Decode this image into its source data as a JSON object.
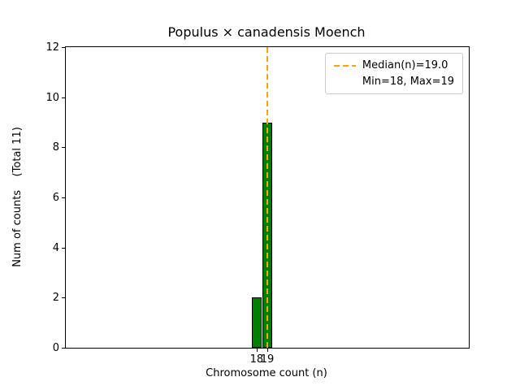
{
  "chart_data": {
    "type": "bar",
    "title": "Populus × canadensis Moench",
    "xlabel": "Chromosome count (n)",
    "ylabel": "Num of counts    (Total 11)",
    "categories": [
      18,
      19
    ],
    "values": [
      2,
      9
    ],
    "total_counts": 11,
    "xlim": [
      0,
      38
    ],
    "ylim": [
      0,
      12
    ],
    "xticks": [
      18,
      19
    ],
    "yticks": [
      0,
      2,
      4,
      6,
      8,
      10,
      12
    ],
    "bar_width": 0.9,
    "bar_color": "#008000",
    "bar_edge_color": "#000000",
    "grid": false,
    "median_line": {
      "x": 19,
      "color": "#FFA500",
      "style": "dashed"
    },
    "legend": {
      "position": "upper right",
      "entries": [
        {
          "symbol": "dashed-line",
          "color": "#FFA500",
          "label": "Median(n)=19.0"
        },
        {
          "symbol": "none",
          "color": "",
          "label": "Min=18, Max=19"
        }
      ]
    }
  }
}
